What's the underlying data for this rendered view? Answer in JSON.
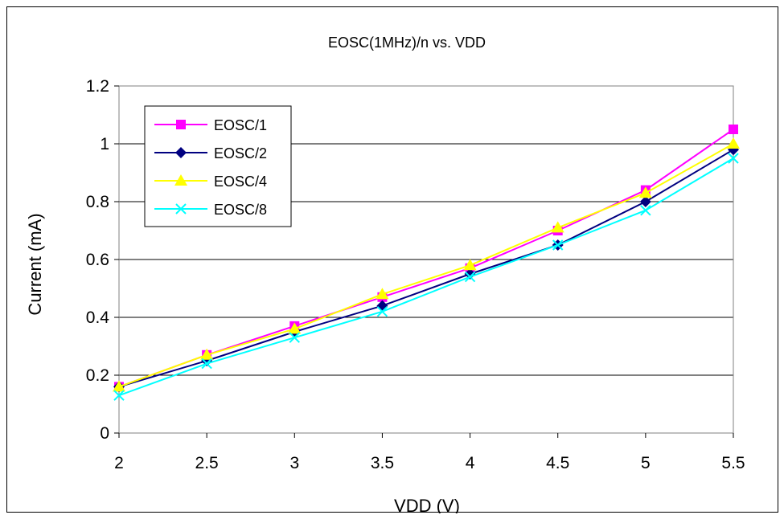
{
  "chart_data": {
    "type": "line",
    "title": "EOSC(1MHz)/n vs. VDD",
    "xlabel": "VDD (V)",
    "ylabel": "Current (mA)",
    "x": [
      2,
      2.5,
      3,
      3.5,
      4,
      4.5,
      5,
      5.5
    ],
    "x_tick_labels": [
      "2",
      "2.5",
      "3",
      "3.5",
      "4",
      "4.5",
      "5",
      "5.5"
    ],
    "ylim": [
      0,
      1.2
    ],
    "y_ticks": [
      0,
      0.2,
      0.4,
      0.6,
      0.8,
      1,
      1.2
    ],
    "y_tick_labels": [
      "0",
      "0.2",
      "0.4",
      "0.6",
      "0.8",
      "1",
      "1.2"
    ],
    "grid": "horizontal",
    "legend_position": "top-left",
    "series": [
      {
        "name": "EOSC/1",
        "color": "#ff00ff",
        "marker": "square",
        "values": [
          0.16,
          0.27,
          0.37,
          0.47,
          0.57,
          0.7,
          0.84,
          1.05
        ]
      },
      {
        "name": "EOSC/2",
        "color": "#000080",
        "marker": "diamond",
        "values": [
          0.16,
          0.25,
          0.35,
          0.44,
          0.55,
          0.65,
          0.8,
          0.98
        ]
      },
      {
        "name": "EOSC/4",
        "color": "#ffff00",
        "marker": "triangle",
        "values": [
          0.16,
          0.27,
          0.36,
          0.48,
          0.58,
          0.71,
          0.83,
          1.0
        ]
      },
      {
        "name": "EOSC/8",
        "color": "#00ffff",
        "marker": "x",
        "values": [
          0.13,
          0.24,
          0.33,
          0.42,
          0.54,
          0.65,
          0.77,
          0.95
        ]
      }
    ]
  }
}
